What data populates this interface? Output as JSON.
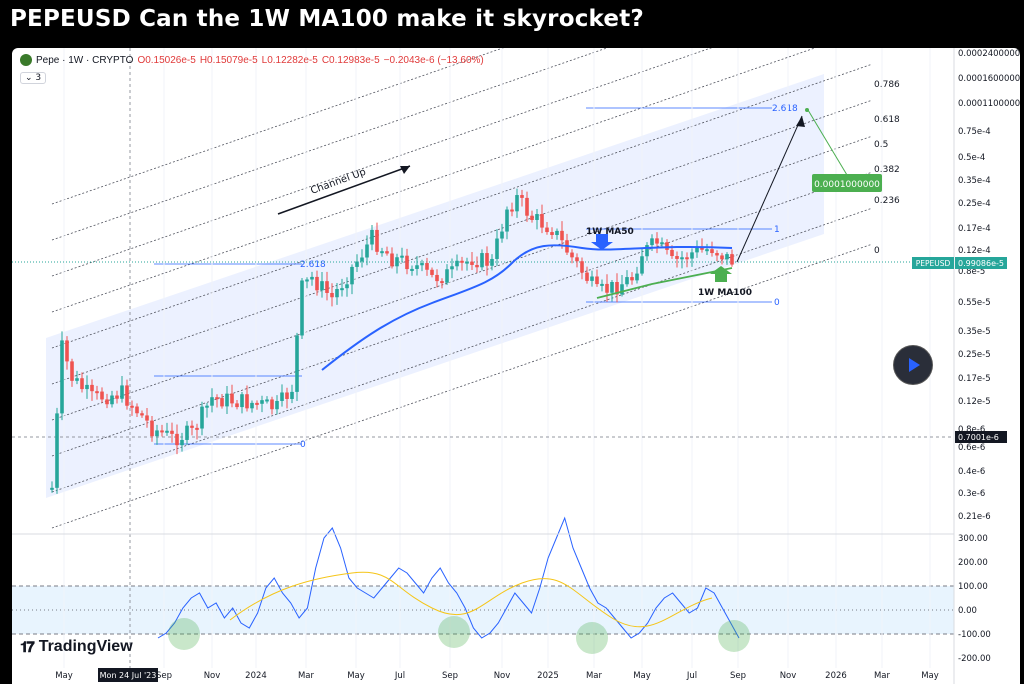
{
  "title": "PEPEUSD Can the 1W MA100 make it skyrocket?",
  "legend": {
    "symbol": "Pepe · 1W · CRYPTO",
    "open": "O0.15026e-5",
    "high": "H0.15079e-5",
    "low": "L0.12282e-5",
    "close": "C0.12983e-5",
    "change": "−0.2043e-6 (−13.60%)",
    "collapse_count": "3"
  },
  "brand": "TradingView",
  "colors": {
    "accent": "#2962ff",
    "up": "#26a69a",
    "down": "#ef5350",
    "price_tag": "#26a69a",
    "channel": "#2962ff"
  },
  "chart_data": {
    "type": "candlestick",
    "price_axis": {
      "scale": "log",
      "tick_labels": [
        "0.0002400000",
        "0.0001600000",
        "0.0001100000",
        "0.75e-4",
        "0.5e-4",
        "0.35e-4",
        "0.25e-4",
        "0.17e-4",
        "0.12e-4",
        "0.8e-5",
        "0.55e-5",
        "0.35e-5",
        "0.25e-5",
        "0.17e-5",
        "0.12e-5",
        "0.8e-6",
        "0.6e-6",
        "0.4e-6",
        "0.3e-6",
        "0.21e-6"
      ]
    },
    "time_axis": {
      "tick_labels": [
        "May",
        "Sep",
        "Nov",
        "2024",
        "Mar",
        "May",
        "Jul",
        "Sep",
        "Nov",
        "2025",
        "Mar",
        "May",
        "Jul",
        "Sep",
        "Nov",
        "2026",
        "Mar",
        "May"
      ],
      "crosshair_label": "Mon 24 Jul '23"
    },
    "price_labels": {
      "current": "0.99086e-5",
      "symbol_tag": "PEPEUSD",
      "crosshair": "0.7001e-6"
    },
    "fib_levels_right": [
      "0.786",
      "0.618",
      "0.5",
      "0.382",
      "0.236",
      "0"
    ],
    "fib_small_1": [
      "2.618",
      "0"
    ],
    "fib_small_2": [
      "2.618",
      "1",
      "0"
    ],
    "annotations": [
      "Channel Up",
      "1W MA50",
      "1W MA100",
      "0.0001000000"
    ],
    "oscillator": {
      "tick_labels": [
        "300.00",
        "200.00",
        "100.00",
        "0.00",
        "-100.00",
        "-200.00"
      ],
      "levels": [
        100,
        -100
      ],
      "range": [
        -200,
        300
      ]
    }
  }
}
